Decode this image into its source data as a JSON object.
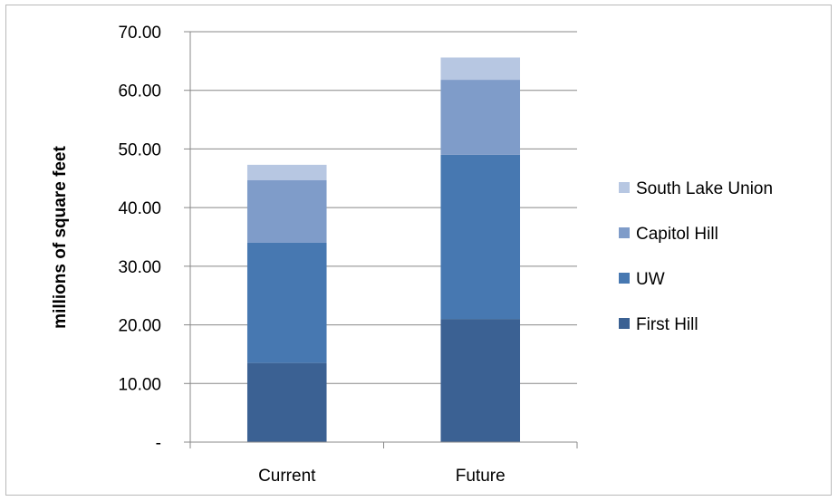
{
  "chart_data": {
    "type": "bar",
    "stacked": true,
    "categories": [
      "Current",
      "Future"
    ],
    "series": [
      {
        "name": "First Hill",
        "values": [
          13.5,
          21.0
        ],
        "color": "#3b6193"
      },
      {
        "name": "UW",
        "values": [
          20.5,
          28.0
        ],
        "color": "#4778b1"
      },
      {
        "name": "Capitol Hill",
        "values": [
          10.7,
          12.8
        ],
        "color": "#7f9cc9"
      },
      {
        "name": "South Lake Union",
        "values": [
          2.6,
          3.8
        ],
        "color": "#b7c7e2"
      }
    ],
    "title": "",
    "xlabel": "",
    "ylabel": "millions of square feet",
    "ylim": [
      0,
      70
    ],
    "yticks": [
      0,
      10,
      20,
      30,
      40,
      50,
      60,
      70
    ],
    "ytick_labels": [
      "-",
      "10.00",
      "20.00",
      "30.00",
      "40.00",
      "50.00",
      "60.00",
      "70.00"
    ],
    "grid": true,
    "legend_placement": "right",
    "legend_order": [
      "South Lake Union",
      "Capitol Hill",
      "UW",
      "First Hill"
    ]
  }
}
